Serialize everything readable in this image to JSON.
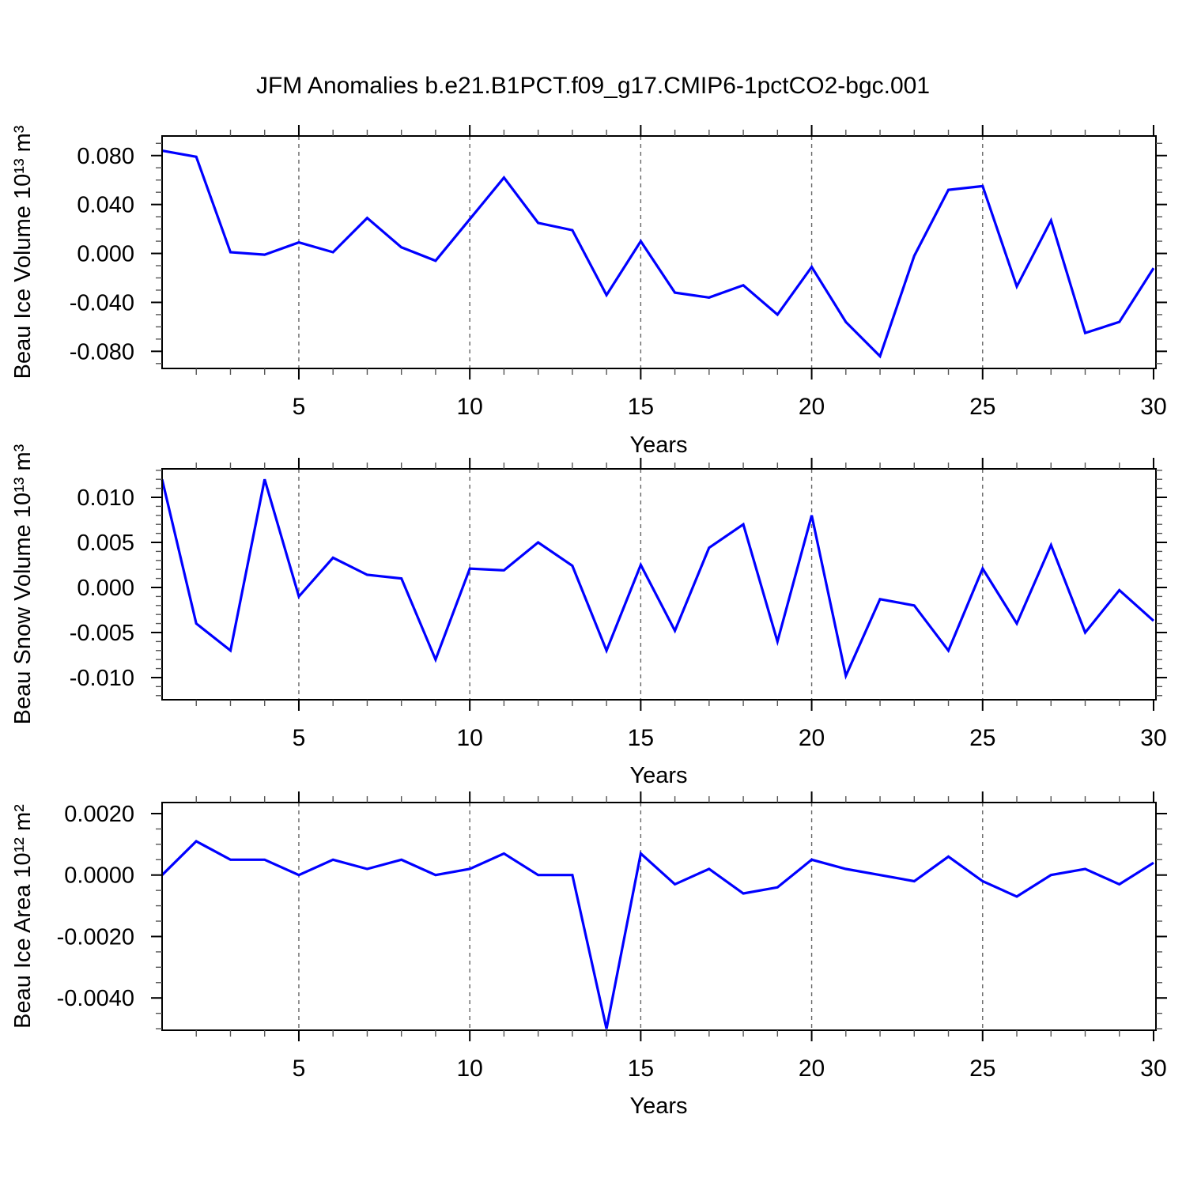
{
  "title": "JFM Anomalies b.e21.B1PCT.f09_g17.CMIP6-1pctCO2-bgc.001",
  "style": {
    "line_color": "#0000ff",
    "frame_color": "#000000",
    "minor_tick_color": "#555555",
    "grid_color": "#666666"
  },
  "chart_data": [
    {
      "type": "line",
      "ylabel": "Beau Ice Volume 10¹³ m³",
      "xlabel": "Years",
      "x": [
        1,
        2,
        3,
        4,
        5,
        6,
        7,
        8,
        9,
        10,
        11,
        12,
        13,
        14,
        15,
        16,
        17,
        18,
        19,
        20,
        21,
        22,
        23,
        24,
        25,
        26,
        27,
        28,
        29,
        30
      ],
      "values": [
        0.084,
        0.079,
        0.001,
        -0.001,
        0.009,
        0.001,
        0.029,
        0.005,
        -0.006,
        0.028,
        0.062,
        0.025,
        0.019,
        -0.034,
        0.01,
        -0.032,
        -0.036,
        -0.026,
        -0.05,
        -0.011,
        -0.056,
        -0.084,
        -0.002,
        0.052,
        0.055,
        -0.027,
        0.027,
        -0.065,
        -0.056,
        -0.012
      ],
      "xlim": [
        1,
        30.07
      ],
      "ylim": [
        -0.094,
        0.096
      ],
      "grid_on": true,
      "legend": "none",
      "xticks": {
        "major": [
          5,
          10,
          15,
          20,
          25,
          30
        ],
        "labels": [
          "5",
          "10",
          "15",
          "20",
          "25",
          "30"
        ],
        "minor_step": 1,
        "grid": [
          5,
          10,
          15,
          20,
          25
        ]
      },
      "yticks": {
        "major": [
          0.08,
          0.04,
          0.0,
          -0.04,
          -0.08
        ],
        "labels": [
          "0.080",
          "0.040",
          "0.000",
          "-0.040",
          "-0.080"
        ],
        "minor_step": 0.01
      }
    },
    {
      "type": "line",
      "ylabel": "Beau Snow Volume 10¹³ m³",
      "xlabel": "Years",
      "x": [
        1,
        2,
        3,
        4,
        5,
        6,
        7,
        8,
        9,
        10,
        11,
        12,
        13,
        14,
        15,
        16,
        17,
        18,
        19,
        20,
        21,
        22,
        23,
        24,
        25,
        26,
        27,
        28,
        29,
        30
      ],
      "values": [
        0.012,
        -0.004,
        -0.007,
        0.012,
        -0.001,
        0.0033,
        0.0014,
        0.001,
        -0.008,
        0.0021,
        0.0019,
        0.005,
        0.0024,
        -0.007,
        0.0025,
        -0.0048,
        0.0044,
        0.007,
        -0.006,
        0.008,
        -0.0098,
        -0.0013,
        -0.002,
        -0.007,
        0.0021,
        -0.004,
        0.0047,
        -0.005,
        -0.0003,
        -0.0037
      ],
      "xlim": [
        1,
        30.07
      ],
      "ylim": [
        -0.01246,
        0.01316
      ],
      "grid_on": true,
      "legend": "none",
      "xticks": {
        "major": [
          5,
          10,
          15,
          20,
          25,
          30
        ],
        "labels": [
          "5",
          "10",
          "15",
          "20",
          "25",
          "30"
        ],
        "minor_step": 1,
        "grid": [
          5,
          10,
          15,
          20,
          25
        ]
      },
      "yticks": {
        "major": [
          0.01,
          0.005,
          0.0,
          -0.005,
          -0.01
        ],
        "labels": [
          "0.010",
          "0.005",
          "0.000",
          "-0.005",
          "-0.010"
        ],
        "minor_step": 0.001
      }
    },
    {
      "type": "line",
      "ylabel": "Beau Ice Area 10¹² m²",
      "xlabel": "Years",
      "x": [
        1,
        2,
        3,
        4,
        5,
        6,
        7,
        8,
        9,
        10,
        11,
        12,
        13,
        14,
        15,
        16,
        17,
        18,
        19,
        20,
        21,
        22,
        23,
        24,
        25,
        26,
        27,
        28,
        29,
        30
      ],
      "values": [
        0.0,
        0.0011,
        0.0005,
        0.0005,
        0.0,
        0.0005,
        0.0002,
        0.0005,
        0.0,
        0.0002,
        0.0007,
        0.0,
        0.0,
        -0.005,
        0.0007,
        -0.0003,
        0.0002,
        -0.0006,
        -0.0004,
        0.0005,
        0.0002,
        0.0,
        -0.0002,
        0.0006,
        -0.0002,
        -0.0007,
        0.0,
        0.0002,
        -0.0003,
        0.0004
      ],
      "xlim": [
        1,
        30.07
      ],
      "ylim": [
        -0.00505,
        0.00236
      ],
      "grid_on": true,
      "legend": "none",
      "xticks": {
        "major": [
          5,
          10,
          15,
          20,
          25,
          30
        ],
        "labels": [
          "5",
          "10",
          "15",
          "20",
          "25",
          "30"
        ],
        "minor_step": 1,
        "grid": [
          5,
          10,
          15,
          20,
          25
        ]
      },
      "yticks": {
        "major": [
          0.002,
          0.0,
          -0.002,
          -0.004
        ],
        "labels": [
          "0.0020",
          "0.0000",
          "-0.0020",
          "-0.0040"
        ],
        "minor_step": 0.0005
      }
    }
  ]
}
